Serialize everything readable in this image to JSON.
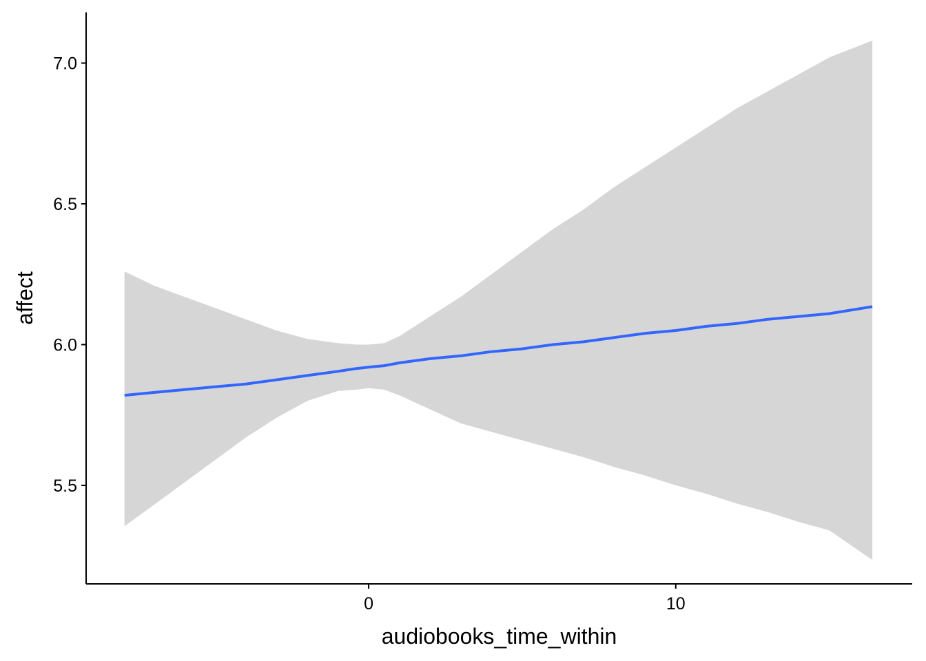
{
  "chart_data": {
    "type": "line",
    "xlabel": "audiobooks_time_within",
    "ylabel": "affect",
    "x_ticks": [
      0,
      10
    ],
    "y_ticks": [
      5.5,
      6.0,
      6.5,
      7.0
    ],
    "y_tick_labels": [
      "5.5",
      "6.0",
      "6.5",
      "7.0"
    ],
    "x_tick_labels": [
      "0",
      "10"
    ],
    "xlim": [
      -9.2,
      17.7
    ],
    "ylim": [
      5.15,
      7.18
    ],
    "grid": false,
    "series": [
      {
        "x": [
          -7.95,
          -7,
          -6,
          -5,
          -4,
          -3,
          -2,
          -1,
          -0.4,
          0,
          0.5,
          1,
          2,
          3,
          4,
          5,
          6,
          7,
          8,
          9,
          10,
          11,
          12,
          13,
          14,
          15,
          16.4
        ],
        "y": [
          5.82,
          5.83,
          5.84,
          5.85,
          5.86,
          5.875,
          5.89,
          5.905,
          5.915,
          5.92,
          5.925,
          5.935,
          5.95,
          5.96,
          5.975,
          5.985,
          6.0,
          6.01,
          6.025,
          6.04,
          6.05,
          6.065,
          6.075,
          6.09,
          6.1,
          6.11,
          6.135
        ],
        "lower": [
          5.355,
          5.43,
          5.51,
          5.59,
          5.67,
          5.74,
          5.8,
          5.835,
          5.84,
          5.845,
          5.84,
          5.82,
          5.77,
          5.72,
          5.69,
          5.66,
          5.63,
          5.6,
          5.565,
          5.535,
          5.5,
          5.47,
          5.435,
          5.405,
          5.37,
          5.34,
          5.235
        ],
        "upper": [
          6.26,
          6.21,
          6.17,
          6.13,
          6.09,
          6.05,
          6.02,
          6.005,
          6.0,
          6.0,
          6.005,
          6.03,
          6.1,
          6.17,
          6.25,
          6.33,
          6.41,
          6.48,
          6.56,
          6.63,
          6.7,
          6.77,
          6.84,
          6.9,
          6.96,
          7.02,
          7.08
        ]
      }
    ],
    "colors": {
      "line": "#3366FF",
      "ribbon": "#D6D6D6",
      "axis": "#000000"
    }
  }
}
